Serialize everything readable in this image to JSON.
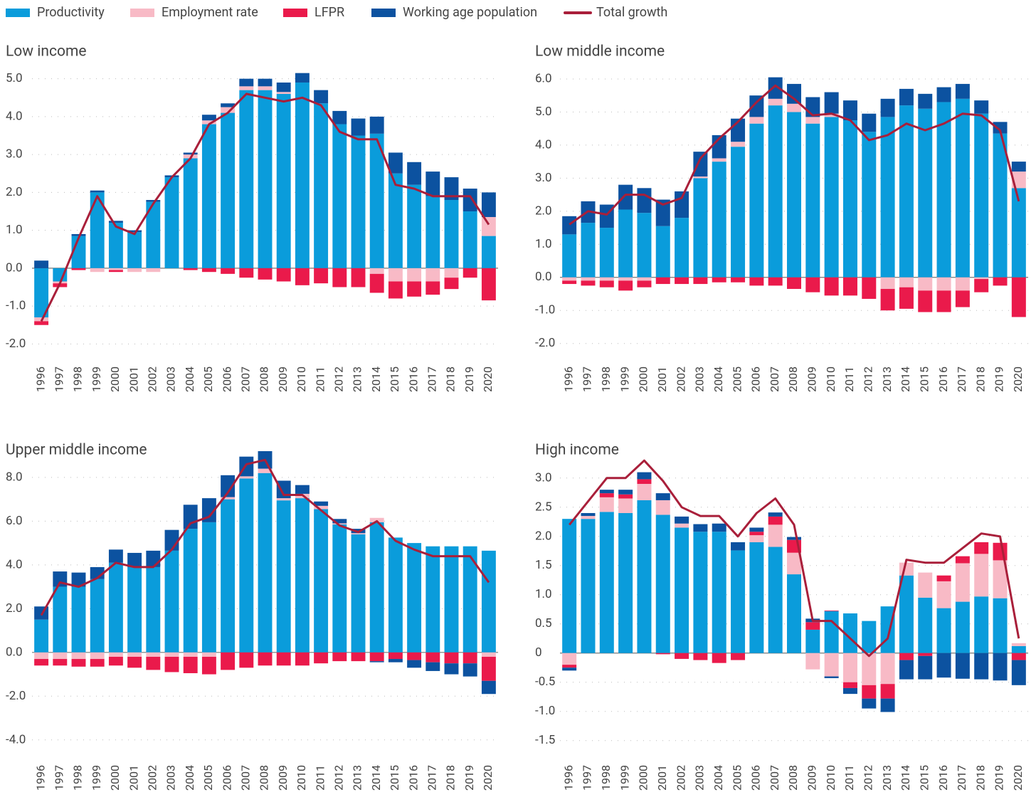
{
  "chart_data": [
    {
      "type": "bar",
      "title": "Low income",
      "categories": [
        "1996",
        "1997",
        "1998",
        "1999",
        "2000",
        "2001",
        "2002",
        "2003",
        "2004",
        "2005",
        "2006",
        "2007",
        "2008",
        "2009",
        "2010",
        "2011",
        "2012",
        "2013",
        "2014",
        "2015",
        "2016",
        "2017",
        "2018",
        "2019",
        "2020"
      ],
      "series": [
        {
          "name": "Productivity",
          "color": "#0a9cdb",
          "values": [
            -1.3,
            -0.35,
            0.85,
            2.0,
            1.2,
            0.95,
            1.75,
            2.4,
            2.9,
            3.8,
            4.1,
            4.7,
            4.7,
            4.6,
            4.9,
            4.35,
            3.8,
            3.5,
            3.55,
            2.5,
            2.2,
            1.9,
            1.8,
            1.5,
            0.85
          ]
        },
        {
          "name": "Employment rate",
          "color": "#f8bac6",
          "values": [
            -0.1,
            -0.05,
            0,
            -0.1,
            -0.05,
            -0.1,
            -0.1,
            0,
            0.1,
            0.1,
            0.15,
            0.1,
            0.1,
            0.05,
            0,
            0,
            0,
            0,
            -0.15,
            -0.35,
            -0.35,
            -0.35,
            -0.25,
            0,
            0.5
          ]
        },
        {
          "name": "LFPR",
          "color": "#ea1a4b",
          "values": [
            -0.1,
            -0.1,
            -0.05,
            0,
            -0.05,
            0,
            0,
            0,
            -0.05,
            -0.1,
            -0.15,
            -0.25,
            -0.3,
            -0.35,
            -0.45,
            -0.4,
            -0.5,
            -0.5,
            -0.5,
            -0.45,
            -0.4,
            -0.35,
            -0.3,
            -0.25,
            -0.85
          ]
        },
        {
          "name": "Working age population",
          "color": "#0c52a0",
          "values": [
            0.2,
            0,
            0.05,
            0.05,
            0.05,
            0.05,
            0.05,
            0.05,
            0.05,
            0.15,
            0.1,
            0.2,
            0.2,
            0.25,
            0.25,
            0.35,
            0.35,
            0.45,
            0.45,
            0.55,
            0.6,
            0.65,
            0.6,
            0.6,
            0.65
          ]
        },
        {
          "name": "Total growth",
          "color": "#a91f3a",
          "type": "line",
          "values": [
            -1.4,
            -0.4,
            0.8,
            1.9,
            1.1,
            0.9,
            1.7,
            2.4,
            2.9,
            3.8,
            4.1,
            4.6,
            4.5,
            4.4,
            4.5,
            4.3,
            3.6,
            3.4,
            3.4,
            2.2,
            2.1,
            1.9,
            1.9,
            1.9,
            1.15
          ]
        }
      ],
      "ylim": [
        -2.2,
        5.2
      ],
      "yticks": [
        {
          "value": -2,
          "label": "-2.0"
        },
        {
          "value": -1,
          "label": "-1.0"
        },
        {
          "value": 0,
          "label": "0.0"
        },
        {
          "value": 1,
          "label": "1.0"
        },
        {
          "value": 2,
          "label": "2.0"
        },
        {
          "value": 3,
          "label": "3.0"
        },
        {
          "value": 4,
          "label": "4.0"
        },
        {
          "value": 5,
          "label": "5.0"
        }
      ],
      "grid": true
    },
    {
      "type": "bar",
      "title": "Low middle income",
      "categories": [
        "1996",
        "1997",
        "1998",
        "1999",
        "2000",
        "2001",
        "2002",
        "2003",
        "2004",
        "2005",
        "2006",
        "2007",
        "2008",
        "2009",
        "2010",
        "2011",
        "2012",
        "2013",
        "2014",
        "2015",
        "2016",
        "2017",
        "2018",
        "2019",
        "2020"
      ],
      "series": [
        {
          "name": "Productivity",
          "color": "#0a9cdb",
          "values": [
            1.3,
            1.65,
            1.5,
            2.05,
            1.95,
            1.55,
            1.8,
            3.0,
            3.5,
            3.95,
            4.65,
            5.2,
            5.0,
            4.65,
            4.85,
            4.75,
            4.4,
            4.85,
            5.2,
            5.1,
            5.3,
            5.4,
            4.95,
            4.35,
            2.7
          ]
        },
        {
          "name": "Employment rate",
          "color": "#f8bac6",
          "values": [
            -0.1,
            -0.1,
            -0.1,
            -0.1,
            -0.1,
            0,
            0,
            0.05,
            0.1,
            0.15,
            0.2,
            0.2,
            0.25,
            0.2,
            0.1,
            0,
            0,
            -0.35,
            -0.3,
            -0.4,
            -0.4,
            -0.4,
            -0.05,
            0,
            0.5
          ]
        },
        {
          "name": "LFPR",
          "color": "#ea1a4b",
          "values": [
            -0.1,
            -0.15,
            -0.2,
            -0.3,
            -0.2,
            -0.2,
            -0.2,
            -0.2,
            -0.15,
            -0.15,
            -0.25,
            -0.25,
            -0.35,
            -0.45,
            -0.55,
            -0.55,
            -0.65,
            -0.65,
            -0.65,
            -0.65,
            -0.65,
            -0.5,
            -0.4,
            -0.25,
            -1.2
          ]
        },
        {
          "name": "Working age population",
          "color": "#0c52a0",
          "values": [
            0.55,
            0.65,
            0.7,
            0.75,
            0.75,
            0.8,
            0.8,
            0.75,
            0.7,
            0.7,
            0.65,
            0.65,
            0.6,
            0.6,
            0.65,
            0.6,
            0.55,
            0.55,
            0.5,
            0.45,
            0.45,
            0.45,
            0.4,
            0.35,
            0.3
          ]
        },
        {
          "name": "Total growth",
          "color": "#a91f3a",
          "type": "line",
          "values": [
            1.6,
            2.0,
            1.9,
            2.5,
            2.5,
            2.2,
            2.4,
            3.6,
            4.2,
            4.7,
            5.3,
            5.8,
            5.4,
            4.9,
            4.95,
            4.75,
            4.15,
            4.3,
            4.65,
            4.45,
            4.65,
            4.95,
            4.9,
            4.45,
            2.3
          ]
        }
      ],
      "ylim": [
        -2.2,
        6.3
      ],
      "yticks": [
        {
          "value": -2,
          "label": "-2.0"
        },
        {
          "value": -1,
          "label": "-1.0"
        },
        {
          "value": 0,
          "label": "0.0"
        },
        {
          "value": 1,
          "label": "1.0"
        },
        {
          "value": 2,
          "label": "2.0"
        },
        {
          "value": 3,
          "label": "3.0"
        },
        {
          "value": 4,
          "label": "4.0"
        },
        {
          "value": 5,
          "label": "5.0"
        },
        {
          "value": 6,
          "label": "6.0"
        }
      ],
      "grid": true
    },
    {
      "type": "bar",
      "title": "Upper middle income",
      "categories": [
        "1996",
        "1997",
        "1998",
        "1999",
        "2000",
        "2001",
        "2002",
        "2003",
        "2004",
        "2005",
        "2006",
        "2007",
        "2008",
        "2009",
        "2010",
        "2011",
        "2012",
        "2013",
        "2014",
        "2015",
        "2016",
        "2017",
        "2018",
        "2019",
        "2020"
      ],
      "series": [
        {
          "name": "Productivity",
          "color": "#0a9cdb",
          "values": [
            1.5,
            3.0,
            3.0,
            3.35,
            4.1,
            3.9,
            3.9,
            4.65,
            5.65,
            5.95,
            7.0,
            7.95,
            8.2,
            6.95,
            7.05,
            6.55,
            5.85,
            5.4,
            5.95,
            5.25,
            5.0,
            4.85,
            4.85,
            4.85,
            4.65
          ]
        },
        {
          "name": "Employment rate",
          "color": "#f8bac6",
          "values": [
            -0.3,
            -0.3,
            -0.3,
            -0.3,
            -0.2,
            -0.2,
            -0.2,
            -0.2,
            -0.2,
            -0.2,
            0.1,
            0.1,
            0.2,
            0.1,
            0.2,
            0.15,
            0.05,
            0.05,
            0.2,
            0,
            0,
            0,
            0,
            0,
            -0.2
          ]
        },
        {
          "name": "LFPR",
          "color": "#ea1a4b",
          "values": [
            -0.3,
            -0.3,
            -0.35,
            -0.35,
            -0.4,
            -0.5,
            -0.6,
            -0.7,
            -0.75,
            -0.8,
            -0.8,
            -0.7,
            -0.6,
            -0.6,
            -0.6,
            -0.5,
            -0.4,
            -0.4,
            -0.4,
            -0.3,
            -0.35,
            -0.45,
            -0.5,
            -0.5,
            -1.1
          ]
        },
        {
          "name": "Working age population",
          "color": "#0c52a0",
          "values": [
            0.6,
            0.7,
            0.65,
            0.55,
            0.6,
            0.65,
            0.75,
            0.95,
            1.1,
            1.1,
            1.0,
            0.9,
            0.8,
            0.8,
            0.4,
            0.2,
            0.2,
            0.2,
            -0.05,
            -0.15,
            -0.35,
            -0.4,
            -0.5,
            -0.6,
            -0.6
          ]
        },
        {
          "name": "Total growth",
          "color": "#a91f3a",
          "type": "line",
          "values": [
            1.7,
            3.2,
            3.0,
            3.4,
            4.1,
            3.9,
            3.9,
            4.7,
            5.9,
            6.2,
            7.3,
            8.6,
            8.8,
            7.2,
            7.2,
            6.5,
            5.8,
            5.5,
            6.0,
            5.1,
            4.7,
            4.4,
            4.4,
            4.4,
            3.2
          ]
        }
      ],
      "ylim": [
        -4.3,
        9.2
      ],
      "yticks": [
        {
          "value": -4,
          "label": "-4.0"
        },
        {
          "value": -2,
          "label": "-2.0"
        },
        {
          "value": 0,
          "label": "0.0"
        },
        {
          "value": 2,
          "label": "2.0"
        },
        {
          "value": 4,
          "label": "4.0"
        },
        {
          "value": 6,
          "label": "6.0"
        },
        {
          "value": 8,
          "label": "8.0"
        }
      ],
      "grid": true
    },
    {
      "type": "bar",
      "title": "High income",
      "categories": [
        "1996",
        "1997",
        "1998",
        "1999",
        "2000",
        "2001",
        "2002",
        "2003",
        "2004",
        "2005",
        "2006",
        "2007",
        "2008",
        "2009",
        "2010",
        "2011",
        "2012",
        "2013",
        "2014",
        "2015",
        "2016",
        "2017",
        "2018",
        "2019",
        "2020"
      ],
      "series": [
        {
          "name": "Productivity",
          "color": "#0a9cdb",
          "values": [
            2.3,
            2.3,
            2.42,
            2.4,
            2.62,
            2.37,
            2.15,
            2.08,
            2.08,
            1.76,
            1.9,
            1.82,
            1.35,
            0.4,
            0.72,
            0.68,
            0.55,
            0.8,
            1.33,
            0.95,
            0.77,
            0.88,
            0.97,
            0.94,
            0.12
          ]
        },
        {
          "name": "Employment rate",
          "color": "#f8bac6",
          "values": [
            -0.2,
            0.05,
            0.25,
            0.25,
            0.28,
            0.25,
            0.07,
            0,
            0,
            0,
            0.12,
            0.38,
            0.37,
            -0.28,
            -0.4,
            -0.5,
            -0.55,
            -0.53,
            0.22,
            0.43,
            0.46,
            0.66,
            0.73,
            0.65,
            0.05
          ]
        },
        {
          "name": "LFPR",
          "color": "#ea1a4b",
          "values": [
            -0.05,
            0,
            0.07,
            0.07,
            0.08,
            -0.02,
            -0.1,
            -0.12,
            -0.17,
            -0.12,
            0.06,
            0.14,
            0.22,
            0.13,
            0.01,
            -0.1,
            -0.23,
            -0.25,
            -0.12,
            -0.05,
            0.1,
            0.12,
            0.2,
            0.3,
            -0.12
          ]
        },
        {
          "name": "Working age population",
          "color": "#0c52a0",
          "values": [
            -0.05,
            0.05,
            0.06,
            0.08,
            0.12,
            0.12,
            0.12,
            0.13,
            0.14,
            0.14,
            0.07,
            0.07,
            0.05,
            0.06,
            -0.03,
            -0.1,
            -0.17,
            -0.23,
            -0.33,
            -0.4,
            -0.42,
            -0.44,
            -0.45,
            -0.47,
            -0.43
          ]
        },
        {
          "name": "Total growth",
          "color": "#a91f3a",
          "type": "line",
          "values": [
            2.2,
            2.6,
            3.0,
            3.0,
            3.3,
            2.95,
            2.5,
            2.35,
            2.35,
            2.0,
            2.4,
            2.65,
            2.2,
            0.55,
            0.55,
            0.25,
            -0.05,
            0.25,
            1.6,
            1.55,
            1.55,
            1.8,
            2.05,
            2.0,
            0.25
          ]
        }
      ],
      "ylim": [
        -1.65,
        3.4
      ],
      "yticks": [
        {
          "value": -1.5,
          "label": "-1.5"
        },
        {
          "value": -1,
          "label": "-1.0"
        },
        {
          "value": -0.5,
          "label": "-0.5"
        },
        0,
        {
          "value": 0.5,
          "label": "0.5"
        },
        {
          "value": 1,
          "label": "1.0"
        },
        {
          "value": 1.5,
          "label": "1.5"
        },
        {
          "value": 2,
          "label": "2.0"
        },
        {
          "value": 2.5,
          "label": "2.5"
        },
        {
          "value": 3,
          "label": "3.0"
        }
      ],
      "grid": true
    }
  ]
}
